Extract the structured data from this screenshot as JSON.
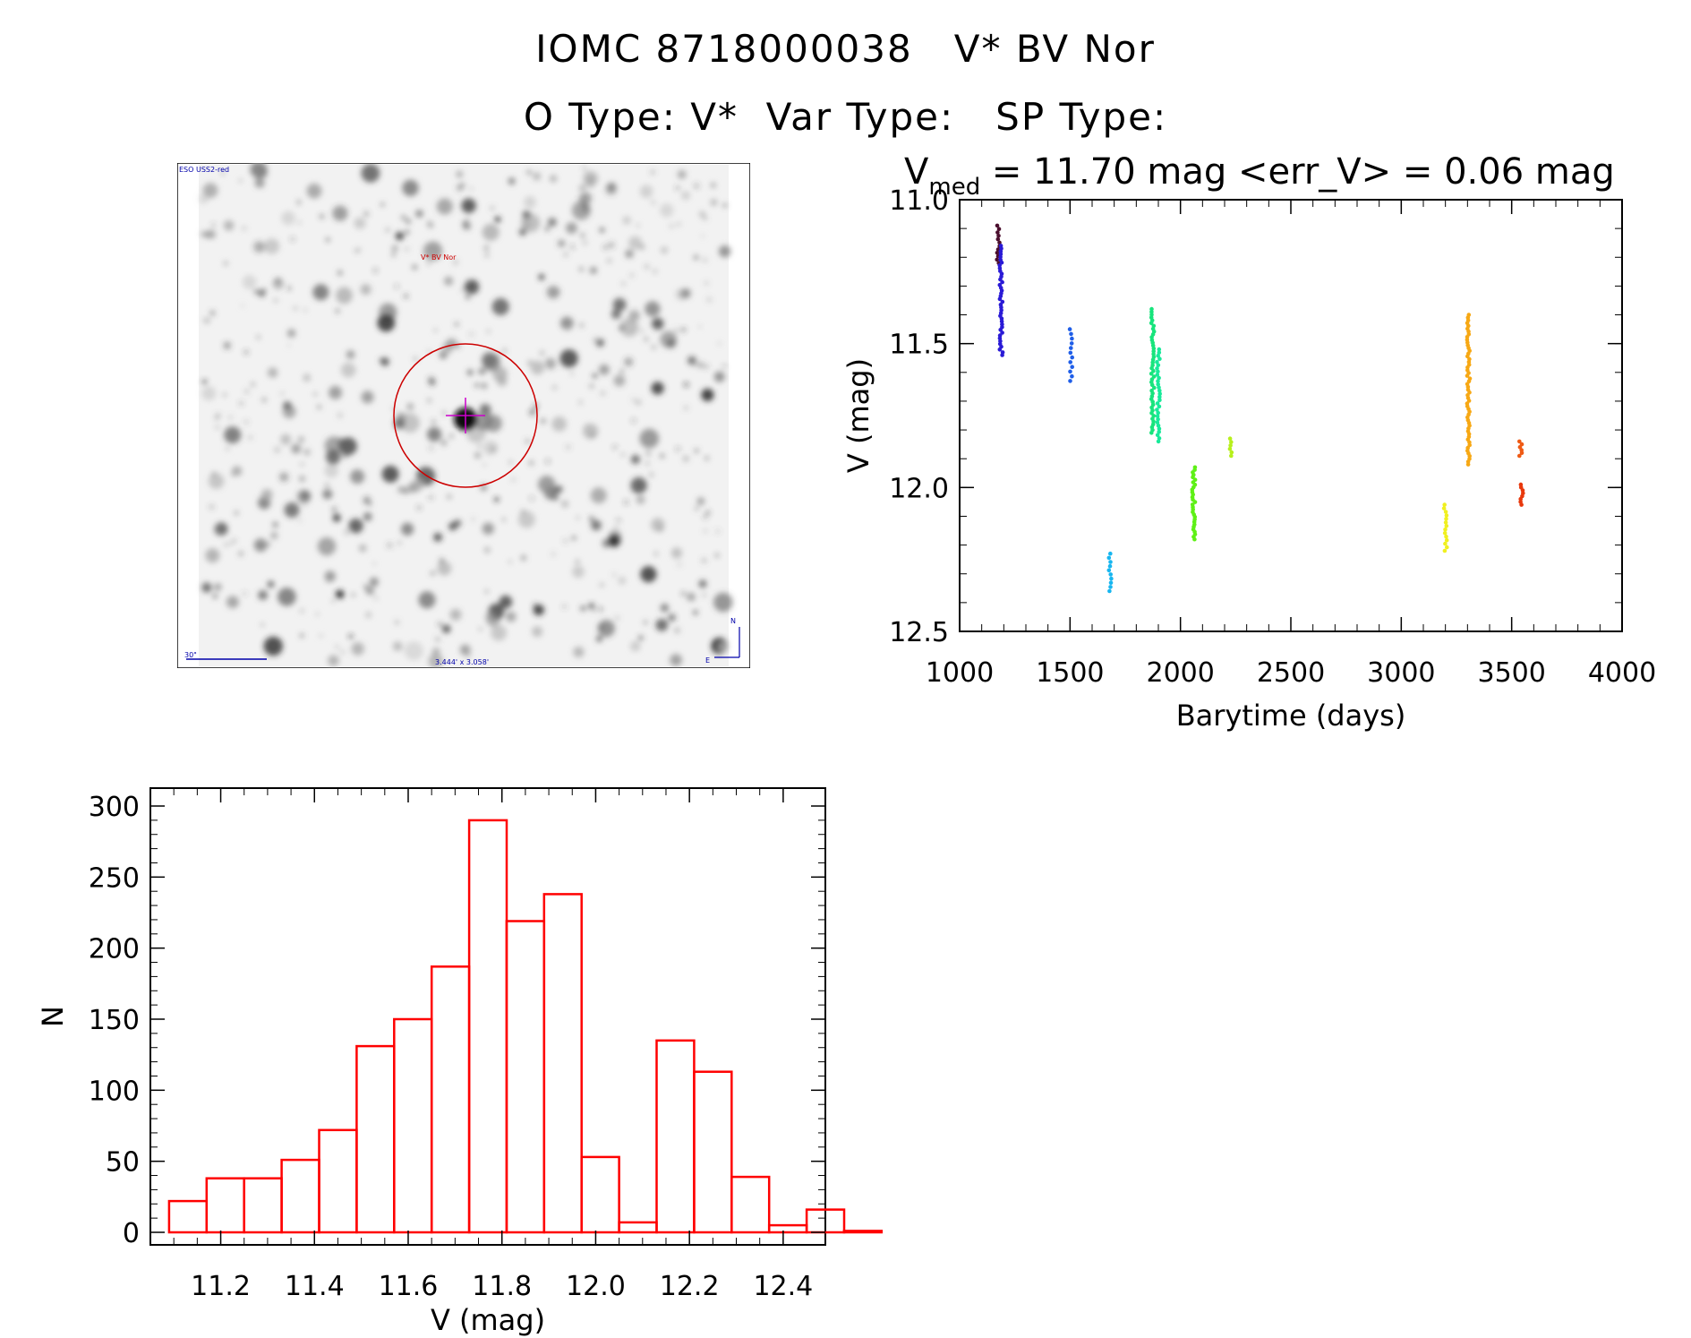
{
  "header": {
    "line1": "IOMC 8718000038   V* BV Nor",
    "line2": "O Type: V*  Var Type:   SP Type:"
  },
  "finder": {
    "survey_label": "ESO USS2-red",
    "target_label": "V* BV Nor",
    "scale_label": "30\"",
    "fov_label": "3.444' x 3.058'",
    "north_label": "N",
    "east_label": "E"
  },
  "colors": {
    "histogram": "#ff0000",
    "circle": "#cc0000",
    "annotation": "#0000aa",
    "crosshair": "#cc00cc"
  },
  "chart_data": [
    {
      "type": "scatter",
      "title_prefix": "V",
      "title_sub": "med",
      "title_rest": " = 11.70 mag <err_V> = 0.06 mag",
      "xlabel": "Barytime (days)",
      "ylabel": "V (mag)",
      "xlim": [
        1000,
        4000
      ],
      "ylim": [
        12.5,
        11.0
      ],
      "xticks": [
        1000,
        1500,
        2000,
        2500,
        3000,
        3500,
        4000
      ],
      "xtick_labels": [
        "1000",
        "1500",
        "2000",
        "2500",
        "3000",
        "3500",
        "4000"
      ],
      "yticks": [
        11.0,
        11.5,
        12.0,
        12.5
      ],
      "ytick_labels": [
        "11.0",
        "11.5",
        "12.0",
        "12.5"
      ],
      "groups": [
        {
          "x": 1175,
          "y_min": 11.09,
          "y_max": 11.22,
          "n": 12,
          "color": "#4b0f2e"
        },
        {
          "x": 1188,
          "y_min": 11.16,
          "y_max": 11.54,
          "n": 40,
          "color": "#2a1ad6"
        },
        {
          "x": 1505,
          "y_min": 11.45,
          "y_max": 11.63,
          "n": 12,
          "color": "#1f5ee8"
        },
        {
          "x": 1680,
          "y_min": 12.23,
          "y_max": 12.36,
          "n": 10,
          "color": "#17b6f0"
        },
        {
          "x": 1875,
          "y_min": 11.38,
          "y_max": 11.81,
          "n": 45,
          "color": "#18e47c"
        },
        {
          "x": 1900,
          "y_min": 11.52,
          "y_max": 11.84,
          "n": 30,
          "color": "#18ea9a"
        },
        {
          "x": 2060,
          "y_min": 11.93,
          "y_max": 12.18,
          "n": 30,
          "color": "#5ef016"
        },
        {
          "x": 2225,
          "y_min": 11.83,
          "y_max": 11.89,
          "n": 6,
          "color": "#b7f01c"
        },
        {
          "x": 3200,
          "y_min": 12.06,
          "y_max": 12.22,
          "n": 14,
          "color": "#f0f020"
        },
        {
          "x": 3305,
          "y_min": 11.4,
          "y_max": 11.92,
          "n": 55,
          "color": "#f7a814"
        },
        {
          "x": 3540,
          "y_min": 11.84,
          "y_max": 11.89,
          "n": 6,
          "color": "#ef5a14"
        },
        {
          "x": 3545,
          "y_min": 11.99,
          "y_max": 12.06,
          "n": 8,
          "color": "#e8380c"
        }
      ]
    },
    {
      "type": "bar",
      "subtype": "histogram",
      "xlabel": "V (mag)",
      "ylabel": "N",
      "xlim": [
        11.05,
        12.49
      ],
      "ylim": [
        0,
        300
      ],
      "xticks": [
        11.2,
        11.4,
        11.6,
        11.8,
        12.0,
        12.2,
        12.4
      ],
      "xtick_labels": [
        "11.2",
        "11.4",
        "11.6",
        "11.8",
        "12.0",
        "12.2",
        "12.4"
      ],
      "yticks": [
        0,
        50,
        100,
        150,
        200,
        250,
        300
      ],
      "ytick_labels": [
        "0",
        "50",
        "100",
        "150",
        "200",
        "250",
        "300"
      ],
      "bin_start": 11.09,
      "bin_width": 0.08,
      "counts": [
        22,
        38,
        38,
        51,
        72,
        131,
        150,
        187,
        290,
        219,
        238,
        53,
        7,
        135,
        113,
        39,
        5,
        16,
        1
      ]
    }
  ]
}
